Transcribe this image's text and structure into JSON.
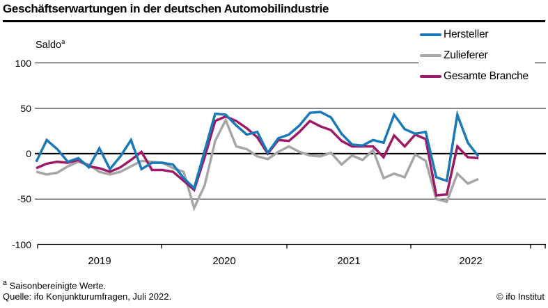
{
  "title": "Geschäftserwartungen in der deutschen Automobilindustrie",
  "y_axis_label": {
    "text": "Saldo",
    "superscript": "a"
  },
  "footnote": {
    "superscript": "a",
    "text": " Saisonbereinigte Werte."
  },
  "source": "Quelle: ifo Konjunkturumfragen, Juli 2022.",
  "copyright": "© ifo Institut",
  "colors": {
    "hersteller": "#1878b8",
    "zulieferer": "#a6a6a6",
    "gesamte_branche": "#9e1a66",
    "axis": "#000000"
  },
  "chart_data": {
    "type": "line",
    "title": "Geschäftserwartungen in der deutschen Automobilindustrie",
    "ylabel": "Saldo (saisonbereinigte Werte)",
    "frequency": "monthly",
    "x_start": "2019-01",
    "x_end": "2022-07",
    "x_tick_labels": [
      "2019",
      "2020",
      "2021",
      "2022"
    ],
    "y_ticks": [
      100,
      50,
      0,
      -50,
      -100
    ],
    "ylim": [
      -100,
      100
    ],
    "grid": "horizontal",
    "legend_position": "top-right",
    "series": [
      {
        "name": "Hersteller",
        "color": "#1878b8",
        "values": [
          -9,
          15,
          5,
          -9,
          -5,
          -15,
          6,
          -17,
          -3,
          15,
          -17,
          -10,
          -10,
          -12,
          -27,
          -38,
          3,
          44,
          43,
          31,
          21,
          24,
          1,
          17,
          21,
          31,
          45,
          46,
          40,
          22,
          10,
          9,
          15,
          12,
          43,
          27,
          22,
          24,
          -26,
          -30,
          43,
          12,
          -3
        ]
      },
      {
        "name": "Zulieferer",
        "color": "#a6a6a6",
        "values": [
          -20,
          -23,
          -21,
          -14,
          -9,
          -12,
          -20,
          -23,
          -20,
          -14,
          -8,
          -9,
          -10,
          -16,
          -20,
          -60,
          -35,
          14,
          37,
          8,
          5,
          -3,
          -6,
          2,
          8,
          2,
          -2,
          -3,
          1,
          -12,
          -2,
          -7,
          4,
          -27,
          -22,
          -26,
          -1,
          -8,
          -50,
          -53,
          -22,
          -33,
          -28
        ]
      },
      {
        "name": "Gesamte Branche",
        "color": "#9e1a66",
        "values": [
          -16,
          -11,
          -9,
          -10,
          -7,
          -14,
          -16,
          -20,
          -15,
          -7,
          2,
          -18,
          -18,
          -20,
          -30,
          -40,
          -4,
          36,
          41,
          36,
          28,
          18,
          0,
          15,
          14,
          24,
          36,
          30,
          26,
          14,
          8,
          8,
          8,
          -4,
          20,
          8,
          21,
          16,
          -46,
          -45,
          8,
          -4,
          -5
        ]
      }
    ]
  }
}
